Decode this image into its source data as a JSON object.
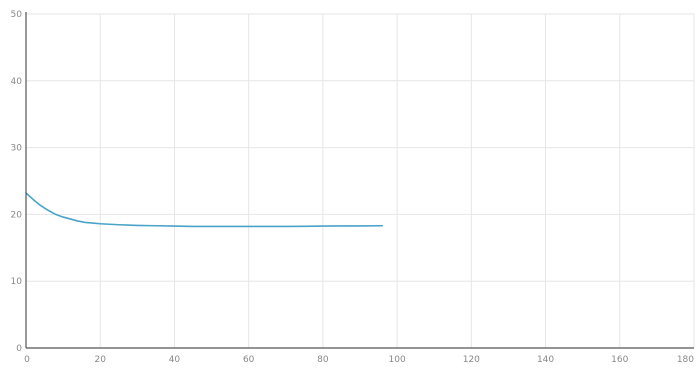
{
  "chart_data": {
    "type": "line",
    "title": "",
    "xlabel": "",
    "ylabel": "",
    "xlim": [
      0,
      180
    ],
    "ylim": [
      0,
      50
    ],
    "x_ticks": [
      0,
      20,
      40,
      60,
      80,
      100,
      120,
      140,
      160,
      180
    ],
    "y_ticks": [
      0,
      10,
      20,
      30,
      40,
      50
    ],
    "grid": true,
    "legend": "none",
    "series": [
      {
        "color": "#4aa3c8",
        "x": [
          0,
          2,
          4,
          6,
          8,
          10,
          12,
          14,
          16,
          18,
          20,
          25,
          30,
          35,
          40,
          45,
          50,
          55,
          60,
          65,
          70,
          75,
          80,
          85,
          90,
          96
        ],
        "y": [
          23.2,
          22.2,
          21.3,
          20.6,
          20.0,
          19.6,
          19.3,
          19.0,
          18.8,
          18.7,
          18.6,
          18.45,
          18.35,
          18.3,
          18.25,
          18.2,
          18.2,
          18.2,
          18.2,
          18.2,
          18.2,
          18.22,
          18.25,
          18.27,
          18.28,
          18.3
        ]
      }
    ]
  }
}
